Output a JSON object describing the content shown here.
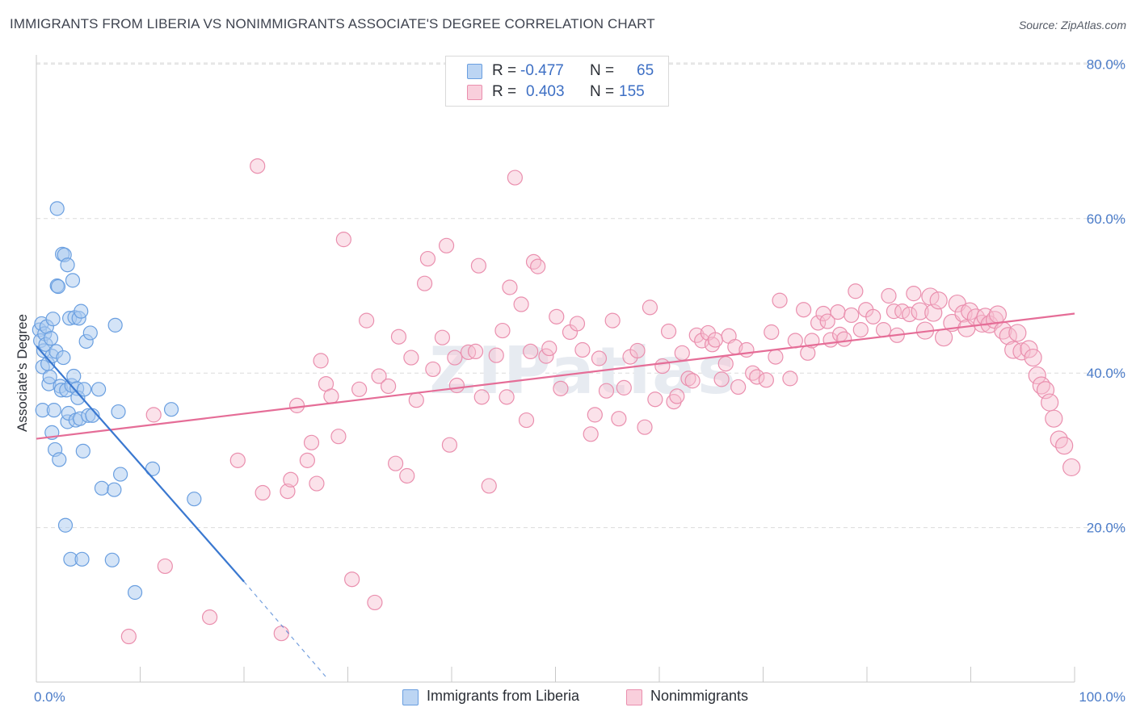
{
  "title": "IMMIGRANTS FROM LIBERIA VS NONIMMIGRANTS ASSOCIATE'S DEGREE CORRELATION CHART",
  "source": "Source: ZipAtlas.com",
  "watermark": "ZIPatlas",
  "legend": {
    "rows": [
      {
        "r_label": "R =",
        "r_value": "-0.477",
        "n_label": "N =",
        "n_value": "65"
      },
      {
        "r_label": "R =",
        "r_value": "0.403",
        "n_label": "N =",
        "n_value": "155"
      }
    ]
  },
  "colors": {
    "blue_fill": "#a9c9ef",
    "blue_stroke": "#6a9fe0",
    "blue_line": "#3a78d0",
    "pink_fill": "#f6bfd0",
    "pink_stroke": "#ea8fae",
    "pink_line": "#e56d97",
    "tick_text": "#4a7bc8",
    "grid": "#dcdcdc"
  },
  "chart_data": {
    "type": "scatter",
    "title": "IMMIGRANTS FROM LIBERIA VS NONIMMIGRANTS ASSOCIATE'S DEGREE CORRELATION CHART",
    "xlabel": "",
    "ylabel": "Associate's Degree",
    "xlim": [
      0,
      100
    ],
    "ylim": [
      0,
      82
    ],
    "x_tick_labels": [
      "0.0%",
      "100.0%"
    ],
    "y_ticks": [
      20,
      40,
      60,
      80
    ],
    "y_tick_labels": [
      "20.0%",
      "40.0%",
      "60.0%",
      "80.0%"
    ],
    "grid": true,
    "legend_position": "top-center",
    "series": [
      {
        "name": "Immigrants from Liberia",
        "color": "#a9c9ef",
        "r": -0.477,
        "n": 65,
        "trend": {
          "x": [
            0,
            20,
            28
          ],
          "y": [
            43.5,
            13.0,
            0.5
          ],
          "solid_until_x": 20
        },
        "points": [
          [
            0.3,
            45.6
          ],
          [
            0.4,
            44.2
          ],
          [
            0.5,
            46.4
          ],
          [
            0.6,
            40.8
          ],
          [
            0.7,
            42.9
          ],
          [
            0.8,
            45.1
          ],
          [
            0.9,
            43.7
          ],
          [
            1.0,
            46.0
          ],
          [
            0.6,
            35.2
          ],
          [
            1.1,
            41.2
          ],
          [
            1.2,
            38.6
          ],
          [
            1.3,
            39.5
          ],
          [
            1.4,
            44.5
          ],
          [
            1.5,
            42.2
          ],
          [
            1.6,
            47.0
          ],
          [
            1.5,
            32.3
          ],
          [
            1.7,
            35.2
          ],
          [
            1.8,
            30.1
          ],
          [
            1.9,
            42.8
          ],
          [
            2.0,
            51.3
          ],
          [
            2.1,
            51.2
          ],
          [
            2.2,
            28.8
          ],
          [
            2.0,
            61.3
          ],
          [
            2.3,
            38.3
          ],
          [
            2.4,
            37.8
          ],
          [
            2.5,
            55.4
          ],
          [
            2.6,
            42.0
          ],
          [
            2.7,
            55.3
          ],
          [
            2.8,
            20.3
          ],
          [
            2.9,
            37.8
          ],
          [
            3.0,
            33.7
          ],
          [
            3.1,
            34.8
          ],
          [
            3.2,
            47.1
          ],
          [
            3.0,
            54.0
          ],
          [
            3.3,
            15.9
          ],
          [
            3.4,
            38.4
          ],
          [
            3.5,
            52.0
          ],
          [
            3.6,
            39.6
          ],
          [
            3.7,
            47.2
          ],
          [
            3.8,
            33.9
          ],
          [
            3.9,
            38.0
          ],
          [
            4.0,
            36.8
          ],
          [
            4.1,
            47.1
          ],
          [
            4.2,
            34.1
          ],
          [
            4.3,
            48.0
          ],
          [
            4.4,
            15.9
          ],
          [
            4.5,
            29.9
          ],
          [
            4.6,
            37.9
          ],
          [
            4.8,
            44.1
          ],
          [
            5.0,
            34.5
          ],
          [
            5.2,
            45.2
          ],
          [
            5.4,
            34.5
          ],
          [
            6.0,
            37.9
          ],
          [
            6.3,
            25.1
          ],
          [
            7.3,
            15.8
          ],
          [
            7.5,
            24.9
          ],
          [
            7.6,
            46.2
          ],
          [
            7.9,
            35.0
          ],
          [
            8.1,
            26.9
          ],
          [
            9.5,
            11.6
          ],
          [
            11.2,
            27.6
          ],
          [
            13.0,
            35.3
          ],
          [
            15.2,
            23.7
          ]
        ]
      },
      {
        "name": "Nonimmigrants",
        "color": "#f6bfd0",
        "r": 0.403,
        "n": 155,
        "trend": {
          "x": [
            0,
            100
          ],
          "y": [
            31.5,
            47.7
          ]
        },
        "points": [
          [
            8.9,
            5.9
          ],
          [
            11.3,
            34.6
          ],
          [
            12.4,
            15.0
          ],
          [
            16.7,
            8.4
          ],
          [
            19.4,
            28.7
          ],
          [
            21.3,
            66.8
          ],
          [
            21.8,
            24.5
          ],
          [
            23.6,
            6.3
          ],
          [
            24.2,
            24.7
          ],
          [
            24.5,
            26.2
          ],
          [
            25.1,
            35.8
          ],
          [
            26.1,
            28.7
          ],
          [
            26.5,
            31.0
          ],
          [
            27.0,
            25.7
          ],
          [
            27.4,
            41.6
          ],
          [
            27.9,
            38.6
          ],
          [
            28.4,
            37.0
          ],
          [
            29.1,
            31.8
          ],
          [
            29.6,
            57.3
          ],
          [
            30.4,
            13.3
          ],
          [
            31.1,
            37.9
          ],
          [
            31.8,
            46.8
          ],
          [
            32.6,
            10.3
          ],
          [
            33.0,
            39.6
          ],
          [
            33.9,
            38.3
          ],
          [
            34.6,
            28.3
          ],
          [
            34.9,
            44.7
          ],
          [
            35.7,
            26.7
          ],
          [
            36.1,
            42.0
          ],
          [
            36.6,
            36.5
          ],
          [
            37.4,
            51.6
          ],
          [
            37.7,
            54.8
          ],
          [
            38.2,
            40.5
          ],
          [
            39.1,
            44.6
          ],
          [
            39.5,
            56.5
          ],
          [
            39.8,
            30.7
          ],
          [
            40.3,
            42.0
          ],
          [
            40.5,
            38.4
          ],
          [
            41.6,
            42.7
          ],
          [
            42.3,
            42.8
          ],
          [
            42.6,
            53.9
          ],
          [
            42.9,
            36.9
          ],
          [
            43.6,
            25.4
          ],
          [
            44.3,
            42.3
          ],
          [
            44.9,
            45.5
          ],
          [
            45.3,
            36.9
          ],
          [
            45.6,
            51.1
          ],
          [
            46.1,
            65.3
          ],
          [
            46.7,
            48.9
          ],
          [
            47.2,
            33.9
          ],
          [
            47.6,
            42.8
          ],
          [
            47.9,
            54.4
          ],
          [
            48.3,
            53.8
          ],
          [
            49.1,
            42.2
          ],
          [
            49.4,
            43.2
          ],
          [
            50.1,
            47.3
          ],
          [
            50.5,
            38.0
          ],
          [
            51.4,
            45.3
          ],
          [
            52.1,
            46.4
          ],
          [
            52.6,
            43.0
          ],
          [
            53.4,
            32.1
          ],
          [
            53.8,
            34.6
          ],
          [
            54.2,
            41.9
          ],
          [
            54.9,
            37.7
          ],
          [
            55.5,
            46.8
          ],
          [
            56.1,
            34.1
          ],
          [
            56.6,
            38.1
          ],
          [
            57.2,
            42.1
          ],
          [
            57.9,
            42.9
          ],
          [
            58.6,
            33.0
          ],
          [
            59.1,
            48.5
          ],
          [
            59.6,
            36.6
          ],
          [
            60.3,
            40.9
          ],
          [
            60.9,
            45.4
          ],
          [
            61.4,
            36.3
          ],
          [
            61.7,
            37.0
          ],
          [
            62.2,
            42.6
          ],
          [
            62.8,
            39.3
          ],
          [
            63.2,
            39.0
          ],
          [
            63.6,
            44.9
          ],
          [
            64.1,
            44.2
          ],
          [
            64.7,
            45.2
          ],
          [
            65.1,
            43.7
          ],
          [
            65.4,
            44.3
          ],
          [
            66.0,
            39.2
          ],
          [
            66.4,
            41.2
          ],
          [
            66.7,
            44.8
          ],
          [
            67.3,
            43.4
          ],
          [
            67.6,
            38.2
          ],
          [
            68.4,
            43.0
          ],
          [
            69.0,
            40.0
          ],
          [
            69.4,
            39.5
          ],
          [
            70.3,
            39.1
          ],
          [
            70.8,
            45.3
          ],
          [
            71.2,
            42.1
          ],
          [
            71.6,
            49.4
          ],
          [
            72.6,
            39.3
          ],
          [
            73.1,
            44.2
          ],
          [
            73.9,
            48.2
          ],
          [
            74.3,
            42.6
          ],
          [
            74.7,
            44.2
          ],
          [
            75.3,
            46.5
          ],
          [
            75.8,
            47.7
          ],
          [
            76.2,
            46.7
          ],
          [
            76.5,
            44.3
          ],
          [
            77.2,
            47.9
          ],
          [
            77.4,
            45.0
          ],
          [
            77.8,
            44.4
          ],
          [
            78.5,
            47.5
          ],
          [
            78.9,
            50.6
          ],
          [
            79.4,
            45.6
          ],
          [
            79.9,
            48.2
          ],
          [
            80.6,
            47.3
          ],
          [
            81.6,
            45.6
          ],
          [
            82.1,
            50.0
          ],
          [
            82.6,
            48.0
          ],
          [
            82.9,
            44.9
          ],
          [
            83.4,
            48.0
          ],
          [
            84.1,
            47.6
          ],
          [
            84.5,
            50.3
          ],
          [
            85.1,
            48.0
          ],
          [
            85.6,
            45.5
          ],
          [
            86.1,
            49.9
          ],
          [
            86.4,
            47.8
          ],
          [
            86.9,
            49.4
          ],
          [
            87.4,
            44.6
          ],
          [
            88.2,
            46.5
          ],
          [
            88.7,
            49.0
          ],
          [
            89.3,
            47.7
          ],
          [
            89.6,
            45.8
          ],
          [
            89.9,
            48.0
          ],
          [
            90.5,
            47.2
          ],
          [
            91.1,
            46.4
          ],
          [
            91.4,
            47.3
          ],
          [
            91.8,
            46.3
          ],
          [
            92.3,
            46.9
          ],
          [
            92.6,
            47.6
          ],
          [
            93.1,
            45.5
          ],
          [
            93.6,
            44.8
          ],
          [
            94.1,
            43.0
          ],
          [
            94.5,
            45.2
          ],
          [
            94.9,
            42.8
          ],
          [
            95.6,
            43.1
          ],
          [
            96.0,
            42.0
          ],
          [
            96.4,
            39.7
          ],
          [
            96.8,
            38.4
          ],
          [
            97.2,
            37.8
          ],
          [
            97.6,
            36.2
          ],
          [
            98.0,
            34.1
          ],
          [
            98.5,
            31.4
          ],
          [
            99.0,
            30.6
          ],
          [
            99.7,
            27.8
          ]
        ]
      }
    ]
  },
  "bottom_legend": [
    {
      "label": "Immigrants from Liberia"
    },
    {
      "label": "Nonimmigrants"
    }
  ]
}
